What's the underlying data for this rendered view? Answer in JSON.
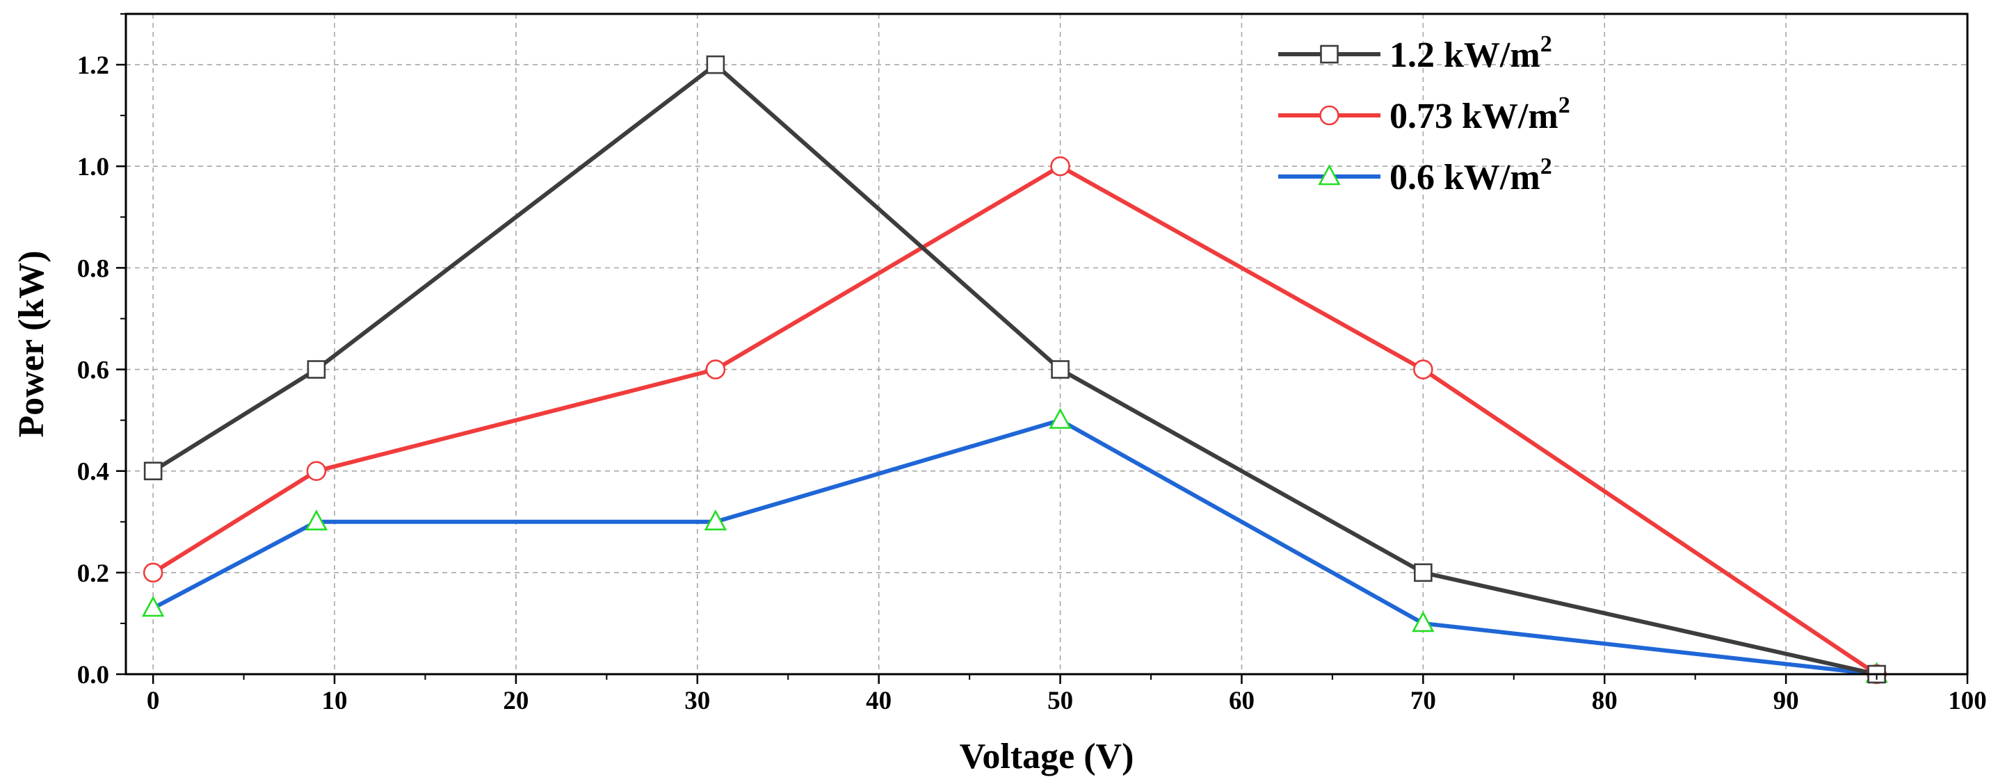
{
  "chart_data": {
    "type": "line",
    "title": "",
    "xlabel": "Voltage (V)",
    "ylabel": "Power (kW)",
    "xlim": [
      -1.5,
      100
    ],
    "ylim": [
      0,
      1.3
    ],
    "x_ticks": [
      0,
      10,
      20,
      30,
      40,
      50,
      60,
      70,
      80,
      90,
      100
    ],
    "y_ticks": [
      0.0,
      0.2,
      0.4,
      0.6,
      0.8,
      1.0,
      1.2
    ],
    "x_tick_labels": [
      "0",
      "10",
      "20",
      "30",
      "40",
      "50",
      "60",
      "70",
      "80",
      "90",
      "100"
    ],
    "y_tick_labels": [
      "0.0",
      "0.2",
      "0.4",
      "0.6",
      "0.8",
      "1.0",
      "1.2"
    ],
    "grid": true,
    "legend_position": "top-right",
    "series": [
      {
        "name": "1.2 kW/m",
        "name_sup": "2",
        "color": "#3d3d3d",
        "marker": "square",
        "marker_color": "#3d3d3d",
        "x": [
          0,
          9,
          31,
          50,
          70,
          95
        ],
        "y": [
          0.4,
          0.6,
          1.2,
          0.6,
          0.2,
          0.0
        ]
      },
      {
        "name": "0.73 kW/m",
        "name_sup": "2",
        "color": "#f03c3c",
        "marker": "circle",
        "marker_color": "#f03c3c",
        "x": [
          0,
          9,
          31,
          50,
          70,
          95
        ],
        "y": [
          0.2,
          0.4,
          0.6,
          1.0,
          0.6,
          0.0
        ]
      },
      {
        "name": "0.6 kW/m",
        "name_sup": "2",
        "color": "#1f66d6",
        "marker": "triangle",
        "marker_color": "#22dd22",
        "x": [
          0,
          9,
          31,
          50,
          70,
          95
        ],
        "y": [
          0.13,
          0.3,
          0.3,
          0.5,
          0.1,
          0.0
        ]
      }
    ]
  }
}
